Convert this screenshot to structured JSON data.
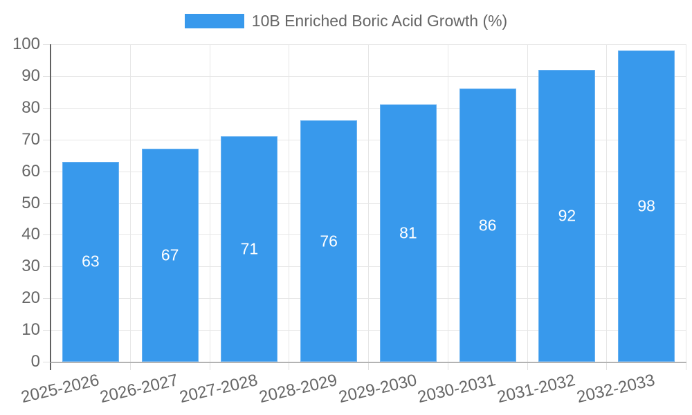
{
  "chart_data": {
    "type": "bar",
    "title": "",
    "legend": "10B Enriched Boric Acid Growth (%)",
    "legend_position": "top",
    "categories": [
      "2025-2026",
      "2026-2027",
      "2027-2028",
      "2028-2029",
      "2029-2030",
      "2030-2031",
      "2031-2032",
      "2032-2033"
    ],
    "values": [
      63,
      67,
      71,
      76,
      81,
      86,
      92,
      98
    ],
    "xlabel": "",
    "ylabel": "",
    "ylim": [
      0,
      100
    ],
    "ytick_step": 10,
    "yticks": [
      0,
      10,
      20,
      30,
      40,
      50,
      60,
      70,
      80,
      90,
      100
    ],
    "grid": true,
    "colors": {
      "bar": "#3899EC",
      "value_label": "#FFFFFF",
      "axis_text": "#666666",
      "legend_text": "#666666",
      "gridline": "#E6E6E6",
      "tick_mark": "#E0E0E0",
      "y_axis_line": "#616161",
      "baseline": "#B3B3B3",
      "background": "#FFFFFF"
    }
  }
}
